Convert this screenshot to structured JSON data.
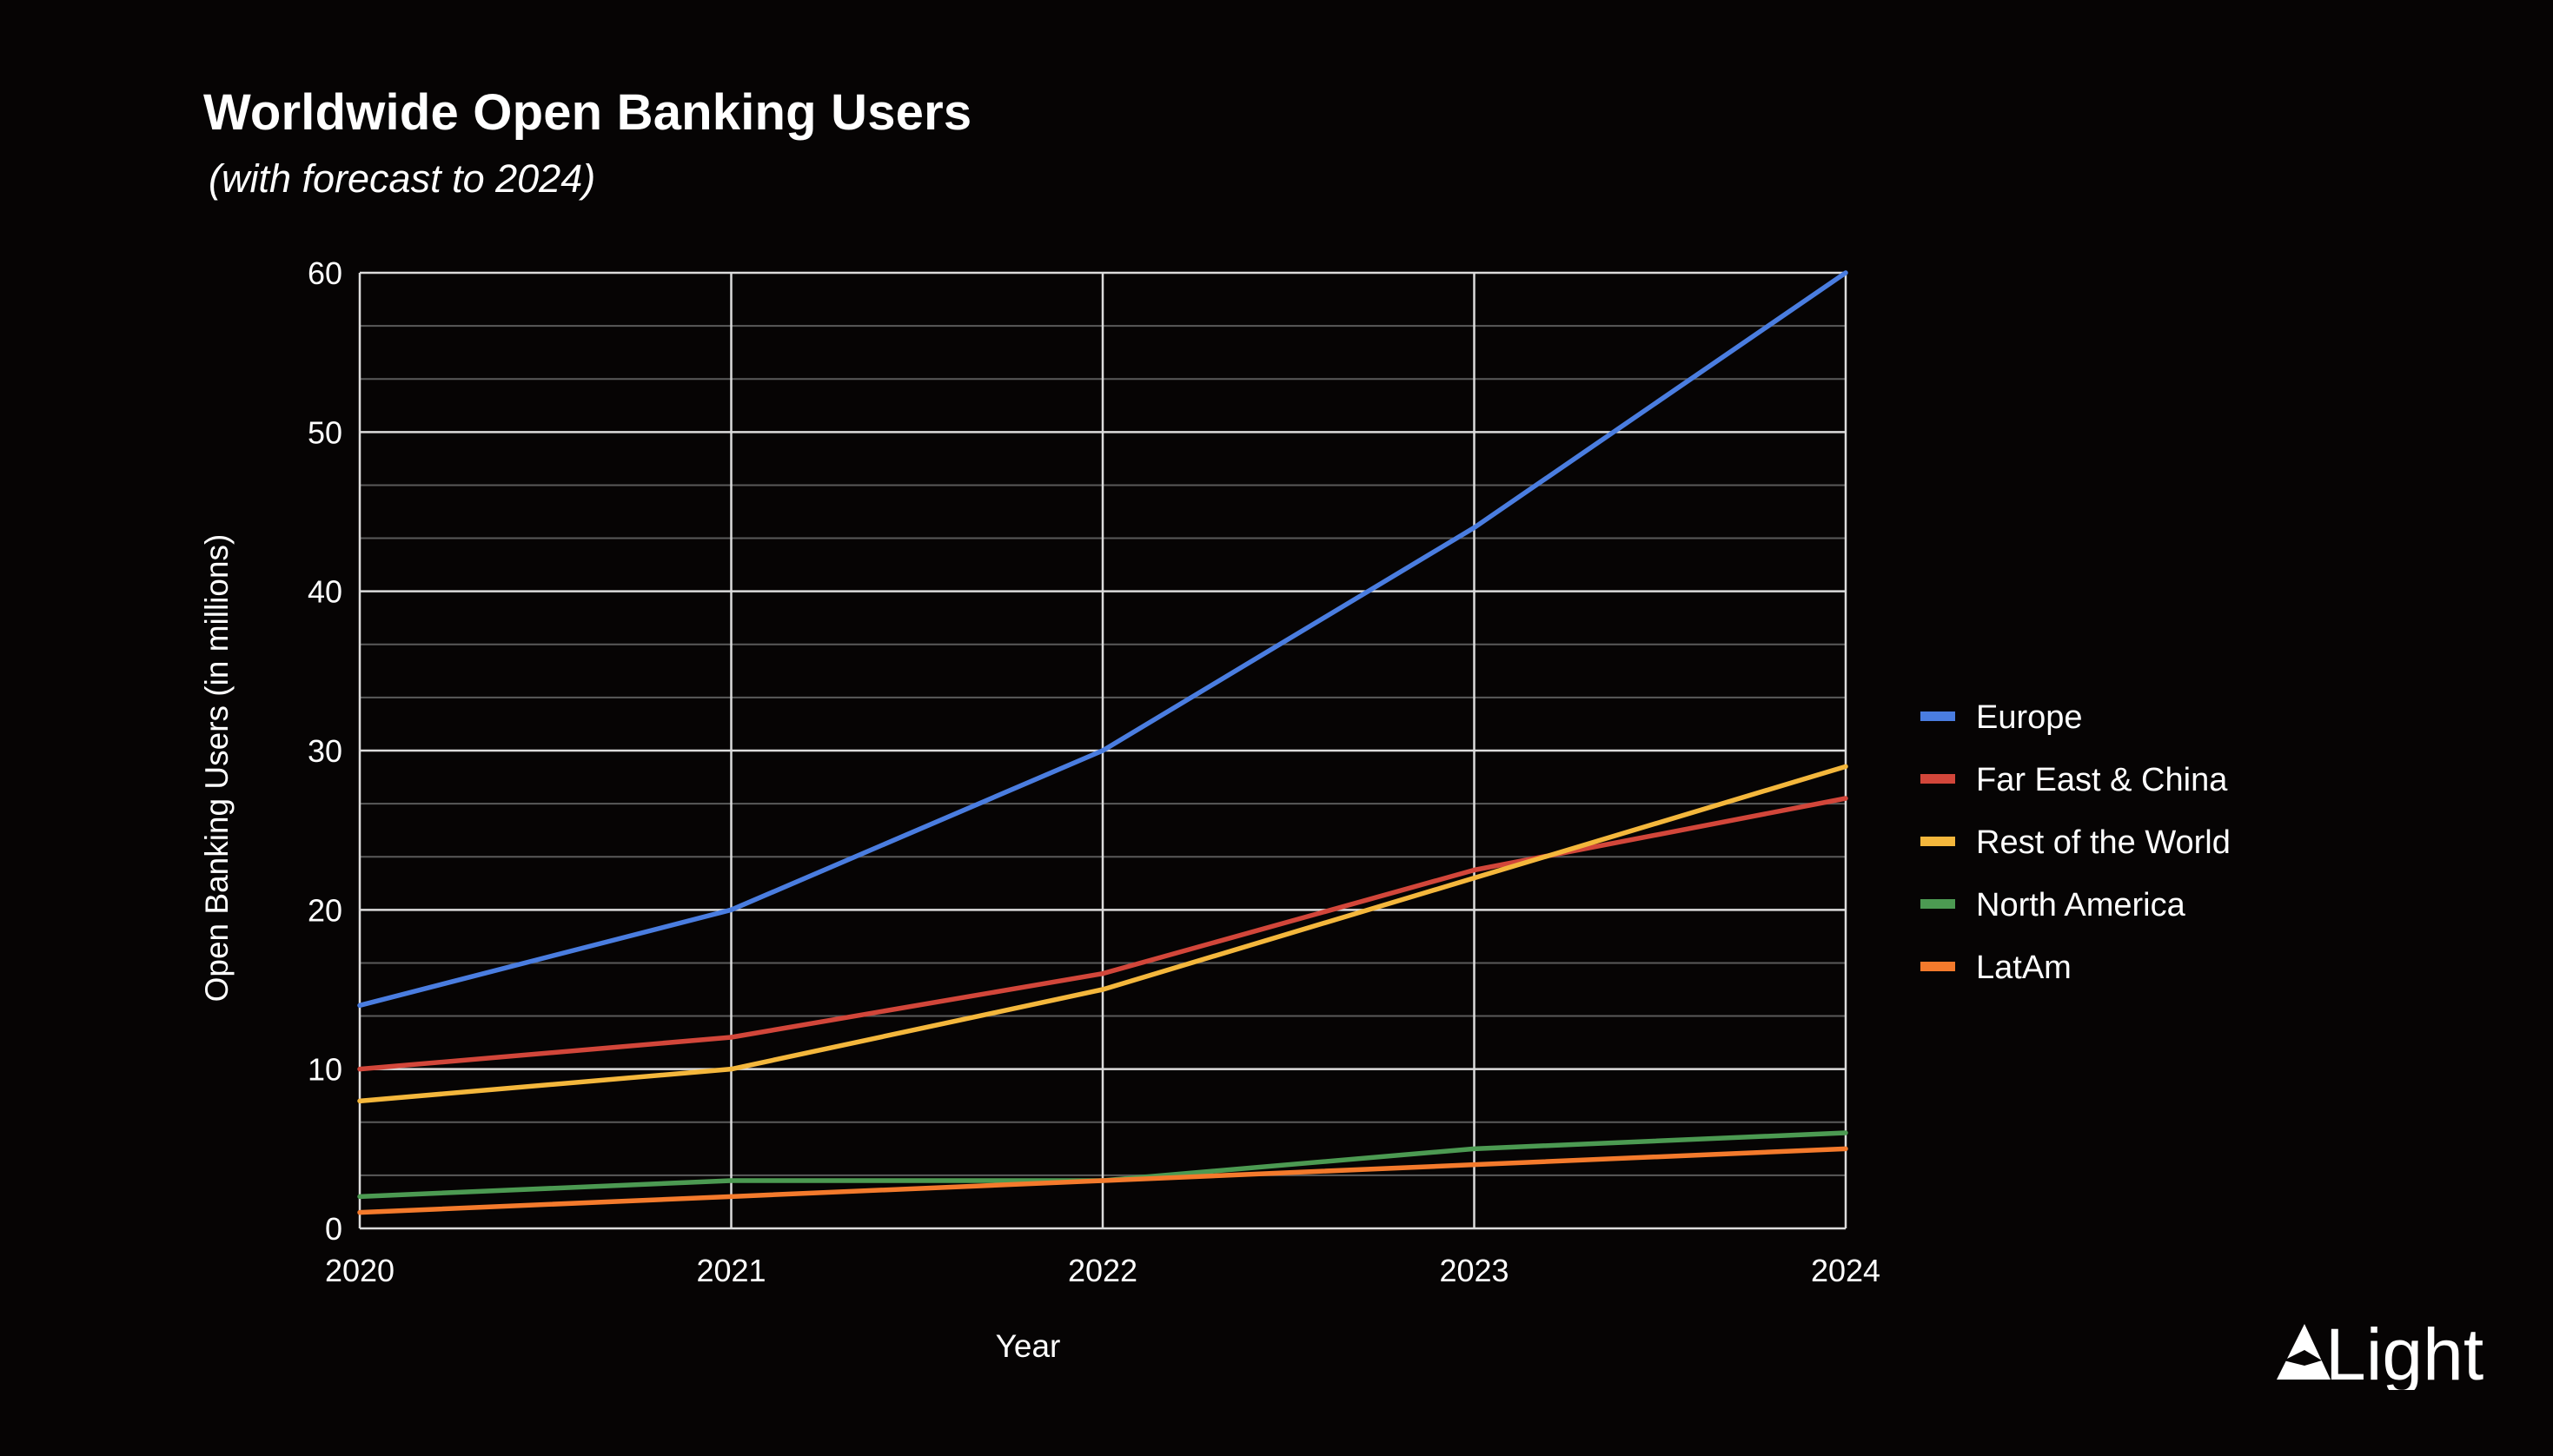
{
  "chart_data": {
    "type": "line",
    "title": "Worldwide Open Banking Users",
    "subtitle": "(with forecast to 2024)",
    "xlabel": "Year",
    "ylabel": "Open Banking Users (in millions)",
    "x": [
      "2020",
      "2021",
      "2022",
      "2023",
      "2024"
    ],
    "ylim": [
      0,
      60
    ],
    "yticks": [
      "0",
      "10",
      "20",
      "30",
      "40",
      "50",
      "60"
    ],
    "grid": true,
    "legend": "right",
    "series": [
      {
        "name": "Europe",
        "color": "#4a7de0",
        "values": [
          14,
          20,
          30,
          44,
          60
        ]
      },
      {
        "name": "Far East & China",
        "color": "#d2463a",
        "values": [
          10,
          12,
          16,
          22.5,
          27
        ]
      },
      {
        "name": "Rest of the World",
        "color": "#f4b73c",
        "values": [
          8,
          10,
          15,
          22,
          29
        ]
      },
      {
        "name": "North America",
        "color": "#4c9a52",
        "values": [
          2,
          3,
          3,
          5,
          6
        ]
      },
      {
        "name": "LatAm",
        "color": "#f47a2c",
        "values": [
          1,
          2,
          3,
          4,
          5
        ]
      }
    ]
  },
  "logo": {
    "text": "Light",
    "icon": "triangle-icon"
  }
}
